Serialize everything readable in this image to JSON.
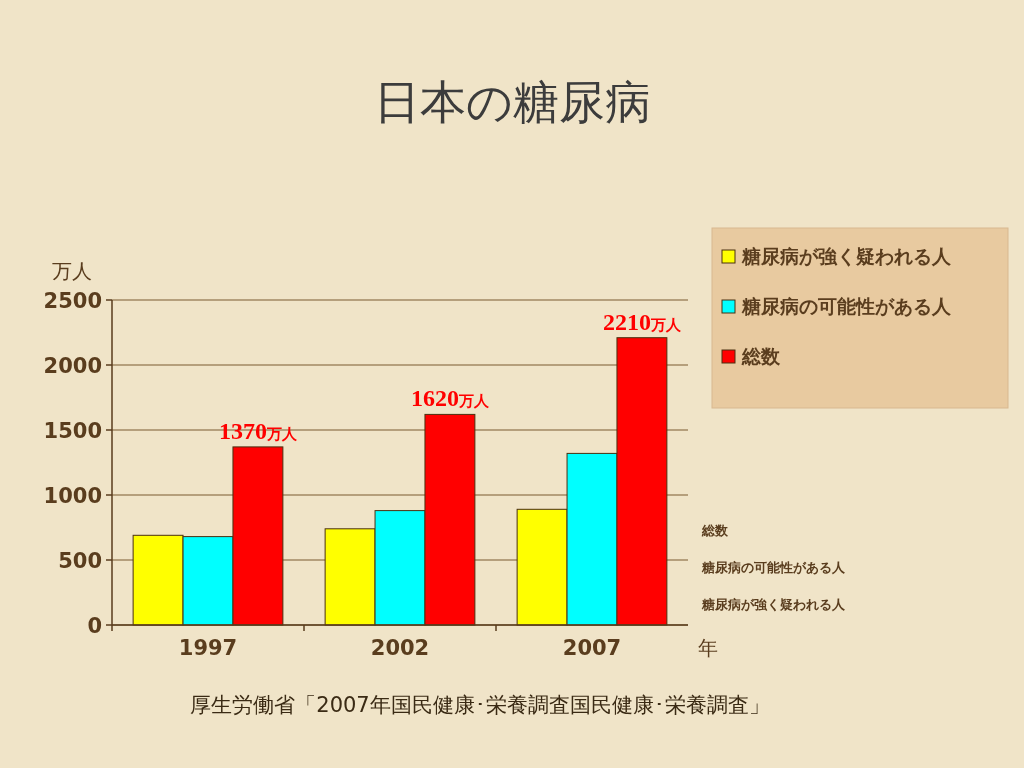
{
  "chart_data": {
    "type": "bar",
    "title": "日本の糖尿病",
    "xlabel": "年",
    "ylabel": "万人",
    "categories": [
      "1997",
      "2002",
      "2007"
    ],
    "series": [
      {
        "name": "糖尿病が強く疑われる人",
        "color": "#ffff00",
        "values": [
          690,
          740,
          890
        ]
      },
      {
        "name": "糖尿病の可能性がある人",
        "color": "#00ffff",
        "values": [
          680,
          880,
          1320
        ]
      },
      {
        "name": "総数",
        "color": "#ff0000",
        "values": [
          1370,
          1620,
          2210
        ],
        "value_labels": [
          "1370万人",
          "1620万人",
          "2210万人"
        ]
      }
    ],
    "ylim": [
      0,
      2500
    ],
    "yticks": [
      0,
      500,
      1000,
      1500,
      2000,
      2500
    ],
    "grid": "y",
    "legend": "top right",
    "annotations": [
      "厚生労働省「2007年国民健康･栄養調査国民健康･栄養調査」"
    ]
  }
}
